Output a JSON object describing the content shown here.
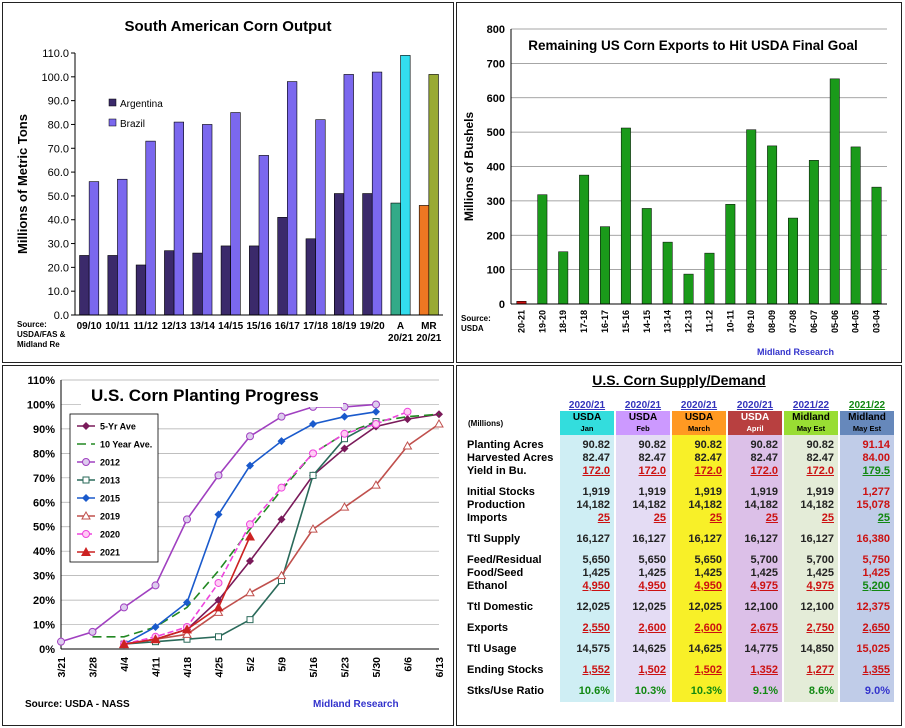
{
  "chart_data": [
    {
      "type": "bar",
      "title": "South American Corn Output",
      "ylabel": "Millions of Metric Tons",
      "ylim": [
        0,
        110
      ],
      "yticks": [
        "0.0",
        "10.0",
        "20.0",
        "30.0",
        "40.0",
        "50.0",
        "60.0",
        "70.0",
        "80.0",
        "90.0",
        "100.0",
        "110.0"
      ],
      "categories": [
        "09/10",
        "10/11",
        "11/12",
        "12/13",
        "13/14",
        "14/15",
        "15/16",
        "16/17",
        "17/18",
        "18/19",
        "19/20",
        "A 20/21",
        "MR 20/21"
      ],
      "series": [
        {
          "name": "Argentina",
          "color": "#3b2a6b",
          "values": [
            25,
            25,
            21,
            27,
            26,
            29,
            29,
            41,
            32,
            51,
            51,
            47,
            46
          ]
        },
        {
          "name": "Brazil",
          "color": "#7b68ee",
          "values": [
            56,
            57,
            73,
            81,
            80,
            85,
            67,
            98,
            82,
            101,
            102,
            109,
            101
          ]
        }
      ],
      "highlight_colors": {
        "A 20/21": [
          "#33aa88",
          "#33ddee"
        ],
        "MR 20/21": [
          "#ee7722",
          "#99aa33"
        ]
      },
      "legend": "top-left",
      "source": "Source: USDA/FAS & Midland Re"
    },
    {
      "type": "bar",
      "title": "Remaining US Corn Exports to Hit USDA Final Goal",
      "ylabel": "Millions of Bushels",
      "ylim": [
        0,
        800
      ],
      "yticks": [
        "0",
        "100",
        "200",
        "300",
        "400",
        "500",
        "600",
        "700",
        "800"
      ],
      "categories": [
        "20-21",
        "19-20",
        "18-19",
        "17-18",
        "16-17",
        "15-16",
        "14-15",
        "13-14",
        "12-13",
        "11-12",
        "10-11",
        "09-10",
        "08-09",
        "07-08",
        "06-07",
        "05-06",
        "04-05",
        "03-04"
      ],
      "values": [
        8,
        318,
        152,
        375,
        225,
        512,
        278,
        180,
        87,
        148,
        290,
        507,
        460,
        250,
        418,
        655,
        457,
        340
      ],
      "colors": {
        "default": "#1a9a1a",
        "current": "#cc1111"
      },
      "source": "Source: USDA",
      "credit": "Midland Research"
    },
    {
      "type": "line",
      "title": "U.S. Corn Planting Progress",
      "ylim": [
        0,
        110
      ],
      "yticks": [
        "0%",
        "10%",
        "20%",
        "30%",
        "40%",
        "50%",
        "60%",
        "70%",
        "80%",
        "90%",
        "100%",
        "110%"
      ],
      "categories": [
        "3/21",
        "3/28",
        "4/4",
        "4/11",
        "4/18",
        "4/25",
        "5/2",
        "5/9",
        "5/16",
        "5/23",
        "5/30",
        "6/6",
        "6/13"
      ],
      "legend": "top-left",
      "source": "Source: USDA - NASS",
      "credit": "Midland Research",
      "series": [
        {
          "name": "5-Yr Ave",
          "color": "#7a1a5a",
          "marker": "diamond",
          "dash": "",
          "points": [
            [
              2,
              2
            ],
            [
              3,
              4
            ],
            [
              4,
              8
            ],
            [
              5,
              20
            ],
            [
              6,
              36
            ],
            [
              7,
              53
            ],
            [
              8,
              71
            ],
            [
              9,
              82
            ],
            [
              10,
              91
            ],
            [
              11,
              94
            ],
            [
              12,
              96
            ]
          ]
        },
        {
          "name": "10 Year Ave.",
          "color": "#228822",
          "marker": "none",
          "dash": "9,5",
          "points": [
            [
              1,
              5
            ],
            [
              2,
              5
            ],
            [
              3,
              9
            ],
            [
              4,
              17
            ],
            [
              5,
              32
            ],
            [
              6,
              49
            ],
            [
              7,
              65
            ],
            [
              8,
              80
            ],
            [
              9,
              88
            ],
            [
              10,
              93
            ],
            [
              11,
              95
            ],
            [
              12,
              96
            ]
          ]
        },
        {
          "name": "2012",
          "color": "#a040c0",
          "marker": "circle",
          "dash": "",
          "points": [
            [
              0,
              3
            ],
            [
              1,
              7
            ],
            [
              2,
              17
            ],
            [
              3,
              26
            ],
            [
              4,
              53
            ],
            [
              5,
              71
            ],
            [
              6,
              87
            ],
            [
              7,
              95
            ],
            [
              8,
              99
            ],
            [
              9,
              99
            ],
            [
              10,
              100
            ]
          ]
        },
        {
          "name": "2013",
          "color": "#2a6a5a",
          "marker": "square",
          "dash": "",
          "points": [
            [
              2,
              2
            ],
            [
              3,
              3
            ],
            [
              4,
              4
            ],
            [
              5,
              5
            ],
            [
              6,
              12
            ],
            [
              7,
              28
            ],
            [
              8,
              71
            ],
            [
              9,
              86
            ],
            [
              10,
              93
            ]
          ]
        },
        {
          "name": "2015",
          "color": "#1a5acc",
          "marker": "diamond",
          "dash": "",
          "points": [
            [
              2,
              2
            ],
            [
              3,
              9
            ],
            [
              4,
              19
            ],
            [
              5,
              55
            ],
            [
              6,
              75
            ],
            [
              7,
              85
            ],
            [
              8,
              92
            ],
            [
              9,
              95
            ],
            [
              10,
              97
            ]
          ]
        },
        {
          "name": "2019",
          "color": "#c0504d",
          "marker": "triangle-open",
          "dash": "",
          "points": [
            [
              2,
              2
            ],
            [
              3,
              4
            ],
            [
              4,
              6
            ],
            [
              5,
              15
            ],
            [
              6,
              23
            ],
            [
              7,
              30
            ],
            [
              8,
              49
            ],
            [
              9,
              58
            ],
            [
              10,
              67
            ],
            [
              11,
              83
            ],
            [
              12,
              92
            ]
          ]
        },
        {
          "name": "2020",
          "color": "#ee44dd",
          "marker": "circle-open",
          "dash": "6,3",
          "points": [
            [
              2,
              2
            ],
            [
              3,
              5
            ],
            [
              4,
              9
            ],
            [
              5,
              27
            ],
            [
              6,
              51
            ],
            [
              7,
              66
            ],
            [
              8,
              80
            ],
            [
              9,
              88
            ],
            [
              10,
              92
            ],
            [
              11,
              97
            ]
          ]
        },
        {
          "name": "2021",
          "color": "#cc2222",
          "marker": "triangle",
          "dash": "",
          "points": [
            [
              2,
              2
            ],
            [
              3,
              4
            ],
            [
              4,
              8
            ],
            [
              5,
              17
            ],
            [
              6,
              46
            ]
          ]
        }
      ]
    },
    {
      "type": "table",
      "title": "U.S. Corn Supply/Demand",
      "unit_label": "(Millions)",
      "columns": [
        {
          "year": "2020/21",
          "src": "USDA",
          "sub": "Jan",
          "color": "#33dddd"
        },
        {
          "year": "2020/21",
          "src": "USDA",
          "sub": "Feb",
          "color": "#cc99ff"
        },
        {
          "year": "2020/21",
          "src": "USDA",
          "sub": "March",
          "color": "#ff9922"
        },
        {
          "year": "2020/21",
          "src": "USDA",
          "sub": "April",
          "color": "#b84040"
        },
        {
          "year": "2021/22",
          "src": "Midland",
          "sub": "May Est",
          "color": "#99dd33"
        },
        {
          "year": "2021/22",
          "src": "Midland",
          "sub": "May Est",
          "color": "#6688bb"
        }
      ],
      "body_colors": [
        "#cfeef4",
        "#e4dcf4",
        "#f8f028",
        "#dcc0e8",
        "#e4ecd8",
        "#c0cce8"
      ],
      "rows": [
        {
          "label": "Planting Acres",
          "values": [
            "90.82",
            "90.82",
            "90.82",
            "90.82",
            "90.82",
            "91.14"
          ],
          "gap_before": false
        },
        {
          "label": "Harvested Acres",
          "values": [
            "82.47",
            "82.47",
            "82.47",
            "82.47",
            "82.47",
            "84.00"
          ],
          "gap_before": false
        },
        {
          "label": "Yield in Bu.",
          "values": [
            "172.0",
            "172.0",
            "172.0",
            "172.0",
            "172.0",
            "179.5"
          ],
          "gap_before": false
        },
        {
          "label": "Initial Stocks",
          "values": [
            "1,919",
            "1,919",
            "1,919",
            "1,919",
            "1,919",
            "1,277"
          ],
          "gap_before": true
        },
        {
          "label": "Production",
          "values": [
            "14,182",
            "14,182",
            "14,182",
            "14,182",
            "14,182",
            "15,078"
          ],
          "gap_before": false
        },
        {
          "label": "Imports",
          "values": [
            "25",
            "25",
            "25",
            "25",
            "25",
            "25"
          ],
          "gap_before": false
        },
        {
          "label": "Ttl Supply",
          "values": [
            "16,127",
            "16,127",
            "16,127",
            "16,127",
            "16,127",
            "16,380"
          ],
          "gap_before": true
        },
        {
          "label": "Feed/Residual",
          "values": [
            "5,650",
            "5,650",
            "5,650",
            "5,700",
            "5,700",
            "5,750"
          ],
          "gap_before": true
        },
        {
          "label": "Food/Seed",
          "values": [
            "1,425",
            "1,425",
            "1,425",
            "1,425",
            "1,425",
            "1,425"
          ],
          "gap_before": false
        },
        {
          "label": "Ethanol",
          "values": [
            "4,950",
            "4,950",
            "4,950",
            "4,975",
            "4,975",
            "5,200"
          ],
          "gap_before": false
        },
        {
          "label": "Ttl Domestic",
          "values": [
            "12,025",
            "12,025",
            "12,025",
            "12,100",
            "12,100",
            "12,375"
          ],
          "gap_before": true
        },
        {
          "label": "Exports",
          "values": [
            "2,550",
            "2,600",
            "2,600",
            "2,675",
            "2,750",
            "2,650"
          ],
          "gap_before": true
        },
        {
          "label": "Ttl Usage",
          "values": [
            "14,575",
            "14,625",
            "14,625",
            "14,775",
            "14,850",
            "15,025"
          ],
          "gap_before": true
        },
        {
          "label": "Ending Stocks",
          "values": [
            "1,552",
            "1,502",
            "1,502",
            "1,352",
            "1,277",
            "1,355"
          ],
          "gap_before": true
        },
        {
          "label": "Stks/Use Ratio",
          "values": [
            "10.6%",
            "10.3%",
            "10.3%",
            "9.1%",
            "8.6%",
            "9.0%"
          ],
          "gap_before": true
        }
      ],
      "underlined_rows": [
        "Yield in Bu.",
        "Imports",
        "Ethanol",
        "Exports",
        "Ending Stocks"
      ]
    }
  ]
}
